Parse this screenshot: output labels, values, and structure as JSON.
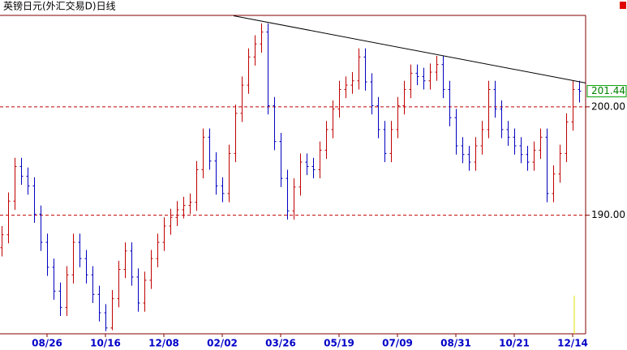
{
  "chart_data": {
    "type": "ohlc",
    "title": "英镑日元(外汇交易D)日线",
    "categories": [
      null,
      null,
      null,
      null,
      null,
      null,
      null,
      "08/26",
      null,
      null,
      null,
      null,
      null,
      null,
      null,
      null,
      "10/16",
      null,
      null,
      null,
      null,
      null,
      null,
      null,
      null,
      "12/08",
      null,
      null,
      null,
      null,
      null,
      null,
      null,
      null,
      "02/02",
      null,
      null,
      null,
      null,
      null,
      null,
      null,
      null,
      "03/26",
      null,
      null,
      null,
      null,
      null,
      null,
      null,
      null,
      "05/19",
      null,
      null,
      null,
      null,
      null,
      null,
      null,
      null,
      "07/09",
      null,
      null,
      null,
      null,
      null,
      null,
      null,
      null,
      "08/31",
      null,
      null,
      null,
      null,
      null,
      null,
      null,
      null,
      "10/21",
      null,
      null,
      null,
      null,
      null,
      null,
      null,
      null,
      "12/14",
      null
    ],
    "open": [
      187.0,
      188.2,
      191.3,
      194.5,
      193.6,
      192.7,
      190.1,
      187.5,
      185.2,
      183.0,
      181.5,
      184.5,
      187.5,
      186.0,
      184.5,
      182.7,
      181.0,
      179.6,
      182.3,
      185.0,
      186.7,
      184.3,
      181.9,
      184.0,
      186.0,
      187.5,
      189.0,
      189.8,
      190.5,
      190.9,
      191.2,
      194.2,
      197.2,
      195.0,
      192.7,
      192.0,
      195.7,
      199.4,
      202.0,
      204.6,
      205.8,
      206.9,
      200.1,
      196.8,
      193.4,
      190.4,
      192.6,
      194.9,
      194.5,
      194.2,
      196.0,
      197.9,
      199.8,
      201.6,
      202.0,
      202.4,
      204.6,
      202.3,
      200.1,
      197.9,
      195.7,
      197.9,
      200.1,
      201.6,
      203.1,
      202.8,
      202.4,
      203.2,
      203.9,
      201.6,
      199.0,
      196.4,
      195.6,
      194.9,
      196.4,
      197.9,
      201.6,
      199.8,
      197.9,
      197.2,
      196.4,
      195.6,
      194.9,
      196.0,
      197.2,
      192.0,
      193.8,
      195.7,
      198.6,
      201.6
    ],
    "high": [
      189.0,
      192.1,
      195.3,
      195.3,
      194.4,
      193.5,
      190.9,
      188.3,
      186.0,
      183.8,
      185.3,
      188.3,
      188.3,
      186.8,
      185.3,
      183.5,
      181.8,
      183.1,
      185.8,
      187.5,
      187.5,
      185.1,
      184.8,
      186.8,
      188.3,
      189.8,
      190.6,
      191.3,
      191.7,
      192.0,
      195.0,
      198.0,
      198.0,
      195.8,
      193.5,
      196.5,
      200.2,
      202.8,
      205.4,
      206.6,
      207.7,
      207.7,
      200.9,
      197.6,
      194.2,
      193.4,
      195.7,
      195.7,
      195.3,
      196.8,
      198.7,
      200.6,
      202.4,
      202.8,
      203.2,
      205.4,
      205.4,
      203.1,
      200.9,
      198.7,
      198.7,
      200.9,
      202.4,
      203.9,
      203.9,
      203.6,
      204.0,
      204.7,
      204.7,
      202.4,
      199.8,
      197.2,
      196.4,
      197.2,
      198.7,
      202.4,
      202.4,
      200.6,
      198.7,
      198.0,
      197.2,
      196.4,
      196.8,
      198.0,
      198.0,
      194.6,
      196.5,
      199.4,
      202.4,
      202.4
    ],
    "low": [
      186.2,
      187.4,
      190.5,
      192.8,
      191.9,
      189.3,
      186.7,
      184.4,
      182.2,
      180.7,
      180.7,
      183.7,
      185.2,
      183.7,
      181.9,
      180.2,
      179.3,
      179.4,
      181.5,
      184.2,
      183.5,
      181.1,
      181.1,
      183.2,
      185.2,
      186.7,
      188.2,
      189.0,
      189.7,
      190.1,
      190.4,
      193.4,
      194.2,
      191.9,
      191.2,
      191.2,
      194.9,
      198.6,
      201.2,
      203.8,
      205.0,
      199.3,
      196.0,
      192.6,
      189.6,
      189.6,
      191.8,
      193.7,
      193.4,
      193.4,
      195.2,
      197.1,
      199.0,
      200.8,
      201.2,
      201.6,
      201.5,
      199.3,
      197.1,
      194.9,
      194.9,
      197.1,
      199.3,
      200.8,
      202.0,
      201.6,
      201.6,
      202.4,
      200.8,
      198.2,
      195.6,
      194.8,
      194.1,
      194.1,
      195.6,
      197.1,
      199.0,
      197.1,
      196.4,
      195.6,
      194.8,
      194.1,
      194.1,
      195.2,
      191.2,
      191.2,
      193.0,
      194.9,
      197.8,
      200.4
    ],
    "close": [
      188.2,
      191.3,
      194.5,
      193.6,
      192.7,
      190.1,
      187.5,
      185.2,
      183.0,
      181.5,
      184.5,
      187.5,
      186.0,
      184.5,
      182.7,
      181.0,
      179.6,
      182.3,
      185.0,
      186.7,
      184.3,
      181.9,
      184.0,
      186.0,
      187.5,
      189.0,
      189.8,
      190.5,
      190.9,
      191.2,
      194.2,
      197.2,
      195.0,
      192.7,
      192.0,
      195.7,
      199.4,
      202.0,
      204.6,
      205.8,
      206.9,
      200.1,
      196.8,
      193.4,
      190.4,
      192.6,
      194.9,
      194.5,
      194.2,
      196.0,
      197.9,
      199.8,
      201.6,
      202.0,
      202.4,
      204.6,
      202.3,
      200.1,
      197.9,
      195.7,
      197.9,
      200.1,
      201.6,
      203.1,
      202.8,
      202.4,
      203.2,
      203.9,
      201.6,
      199.0,
      196.4,
      195.6,
      194.9,
      196.4,
      197.9,
      201.6,
      199.8,
      197.9,
      197.2,
      196.4,
      195.6,
      194.9,
      196.0,
      197.2,
      192.0,
      193.8,
      195.7,
      198.6,
      201.6,
      201.44
    ],
    "up_color": "#c00000",
    "down_color": "#0000c0",
    "last_price": 201.44,
    "trendline": {
      "x": [
        35.75,
        90
      ],
      "y": [
        208.4,
        202.2
      ],
      "color": "#000000"
    },
    "ylim": [
      179.06,
      208.36
    ],
    "yticks": [
      {
        "value": 190,
        "label": "190.00"
      },
      {
        "value": 200,
        "label": "200.00"
      }
    ],
    "grid": true,
    "grid_color": "#c00000"
  }
}
